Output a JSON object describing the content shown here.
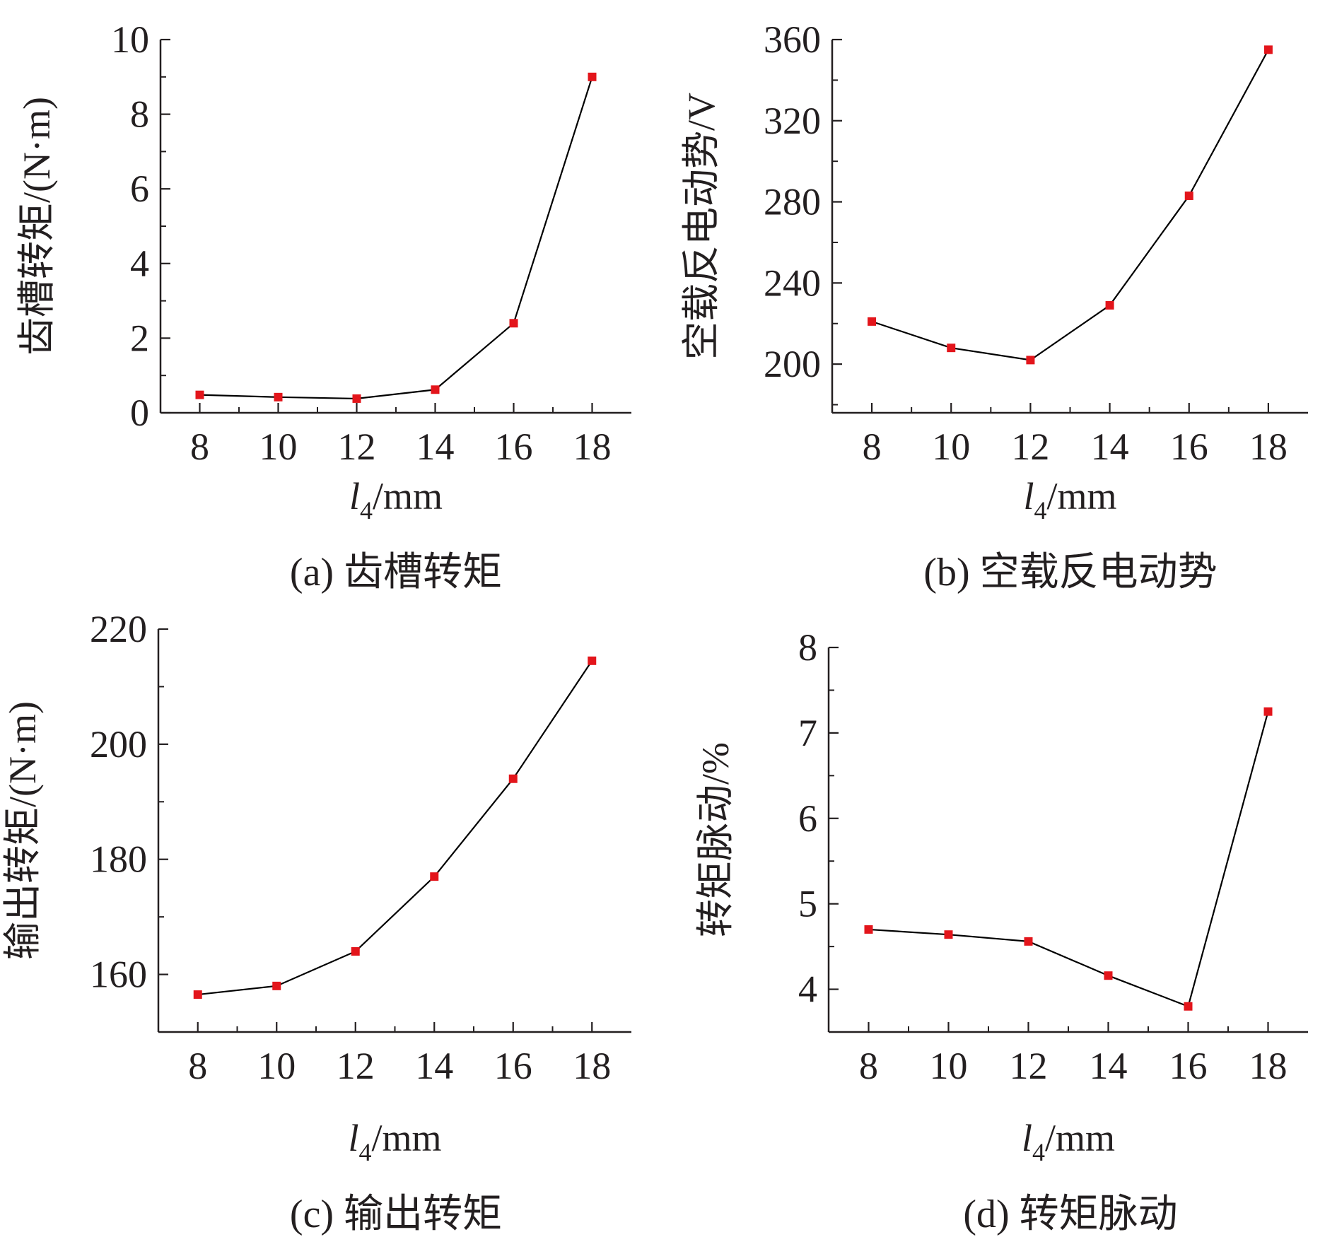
{
  "chart_data": [
    {
      "type": "line",
      "caption": "(a) 齿槽转矩",
      "xlabel": {
        "var": "l",
        "sub": "4",
        "unit": "/mm"
      },
      "ylabel": "齿槽转矩/(N·m)",
      "x": [
        8,
        10,
        12,
        14,
        16,
        18
      ],
      "series": [
        {
          "values": [
            0.48,
            0.42,
            0.38,
            0.62,
            2.4,
            9.0
          ]
        }
      ],
      "xlim": [
        7,
        19
      ],
      "ylim": [
        0,
        10
      ],
      "xticks": [
        8,
        10,
        12,
        14,
        16,
        18
      ],
      "yticks": [
        0,
        2,
        4,
        6,
        8,
        10
      ],
      "grid": false,
      "line_color": "#000000",
      "marker_color": "#e3151b"
    },
    {
      "type": "line",
      "caption": "(b) 空载反电动势",
      "xlabel": {
        "var": "l",
        "sub": "4",
        "unit": "/mm"
      },
      "ylabel": "空载反电动势/V",
      "x": [
        8,
        10,
        12,
        14,
        16,
        18
      ],
      "series": [
        {
          "values": [
            221,
            208,
            202,
            229,
            283,
            355
          ]
        }
      ],
      "xlim": [
        7,
        19
      ],
      "ylim": [
        176,
        360
      ],
      "xticks": [
        8,
        10,
        12,
        14,
        16,
        18
      ],
      "yticks": [
        200,
        240,
        280,
        320,
        360
      ],
      "grid": false,
      "line_color": "#000000",
      "marker_color": "#e3151b"
    },
    {
      "type": "line",
      "caption": "(c) 输出转矩",
      "xlabel": {
        "var": "l",
        "sub": "4",
        "unit": "/mm"
      },
      "ylabel": "输出转矩/(N·m)",
      "x": [
        8,
        10,
        12,
        14,
        16,
        18
      ],
      "series": [
        {
          "values": [
            156.5,
            158,
            164,
            177,
            194,
            214.5
          ]
        }
      ],
      "xlim": [
        7,
        19
      ],
      "ylim": [
        150,
        220
      ],
      "xticks": [
        8,
        10,
        12,
        14,
        16,
        18
      ],
      "yticks": [
        160,
        180,
        200,
        220
      ],
      "grid": false,
      "line_color": "#000000",
      "marker_color": "#e3151b"
    },
    {
      "type": "line",
      "caption": "(d) 转矩脉动",
      "xlabel": {
        "var": "l",
        "sub": "4",
        "unit": "/mm"
      },
      "ylabel": "转矩脉动/%",
      "x": [
        8,
        10,
        12,
        14,
        16,
        18
      ],
      "series": [
        {
          "values": [
            4.7,
            4.64,
            4.56,
            4.16,
            3.8,
            7.25
          ]
        }
      ],
      "xlim": [
        7,
        19
      ],
      "ylim": [
        3.5,
        8
      ],
      "xticks": [
        8,
        10,
        12,
        14,
        16,
        18
      ],
      "yticks": [
        4,
        5,
        6,
        7,
        8
      ],
      "grid": false,
      "line_color": "#000000",
      "marker_color": "#e3151b"
    }
  ]
}
